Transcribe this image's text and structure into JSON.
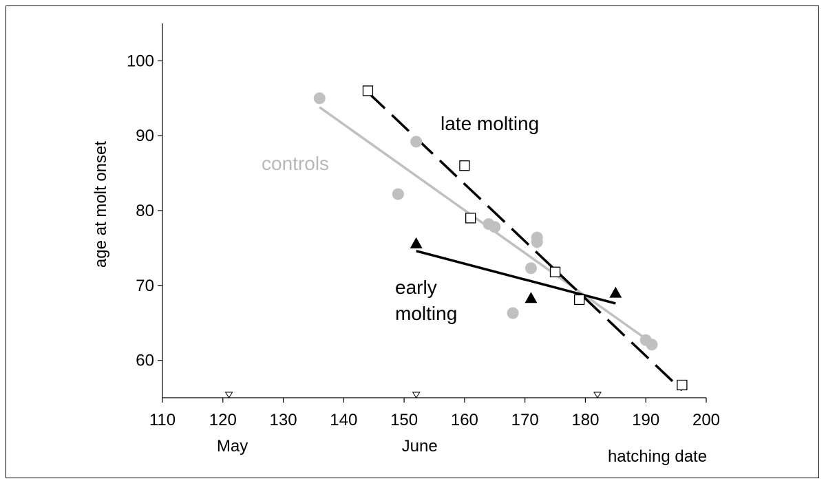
{
  "chart_data": {
    "type": "scatter",
    "title": "",
    "xlabel": "hatching date",
    "ylabel": "age at molt onset",
    "xlim": [
      110,
      200
    ],
    "ylim": [
      55,
      105
    ],
    "x_ticks": [
      110,
      120,
      130,
      140,
      150,
      160,
      170,
      180,
      190,
      200
    ],
    "y_ticks": [
      60,
      70,
      80,
      90,
      100
    ],
    "month_labels": [
      {
        "label": "May",
        "x": 121
      },
      {
        "label": "June",
        "x": 152
      },
      {
        "label": "",
        "x": 182
      }
    ],
    "month_markers_x": [
      121,
      152,
      182
    ],
    "grid": false,
    "colors": {
      "controls": "#c0c0c0",
      "late": "#000000",
      "early": "#000000"
    },
    "series": [
      {
        "name": "controls",
        "marker": "circle",
        "points": [
          [
            136,
            95
          ],
          [
            149,
            82.2
          ],
          [
            152,
            89.2
          ],
          [
            164,
            78.2
          ],
          [
            165,
            77.8
          ],
          [
            168,
            66.3
          ],
          [
            171,
            72.3
          ],
          [
            172,
            76.4
          ],
          [
            172,
            75.8
          ],
          [
            190,
            62.7
          ],
          [
            191,
            62.1
          ]
        ],
        "fit": [
          [
            136,
            93.8
          ],
          [
            191,
            62.3
          ]
        ]
      },
      {
        "name": "late molting",
        "marker": "square",
        "points": [
          [
            144,
            96
          ],
          [
            160,
            86
          ],
          [
            161,
            79
          ],
          [
            175,
            71.8
          ],
          [
            179,
            68.1
          ],
          [
            196,
            56.7
          ]
        ],
        "fit": [
          [
            144,
            95.8
          ],
          [
            196,
            56
          ]
        ]
      },
      {
        "name": "early molting",
        "marker": "triangle",
        "points": [
          [
            152,
            75.6
          ],
          [
            171,
            68.3
          ],
          [
            185,
            69
          ]
        ],
        "fit": [
          [
            152,
            74.6
          ],
          [
            185,
            67.6
          ]
        ]
      }
    ],
    "annotations": [
      {
        "text": "controls",
        "series": "controls"
      },
      {
        "text": "late molting",
        "series": "late molting"
      },
      {
        "text": "early",
        "series": "early molting"
      },
      {
        "text": "molting",
        "series": "early molting"
      }
    ]
  }
}
